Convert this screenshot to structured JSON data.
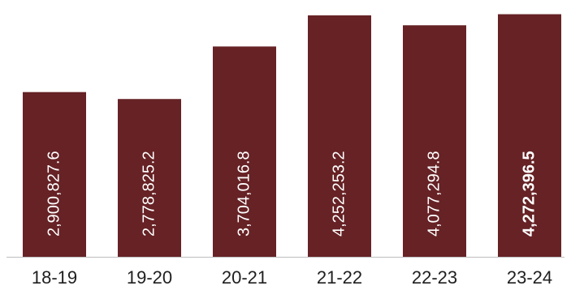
{
  "chart_data": {
    "type": "bar",
    "title": "",
    "xlabel": "",
    "ylabel": "",
    "categories": [
      "18-19",
      "19-20",
      "20-21",
      "21-22",
      "22-23",
      "23-24"
    ],
    "values": [
      2900827.6,
      2778825.2,
      3704016.8,
      4252253.2,
      4077294.8,
      4272396.5
    ],
    "value_labels": [
      "2,900,827.6",
      "2,778,825.2",
      "3,704,016.8",
      "4,252,253.2",
      "4,077,294.8",
      "4,272,396.5"
    ],
    "highlighted_label_index": 5,
    "ylim": [
      0,
      4380000
    ],
    "grid": false,
    "legend": "none",
    "colors": {
      "bar": "#662225",
      "bar_label": "#ffffff",
      "axis": "#bfbfbf",
      "tick_label": "#1f1f1f"
    }
  }
}
